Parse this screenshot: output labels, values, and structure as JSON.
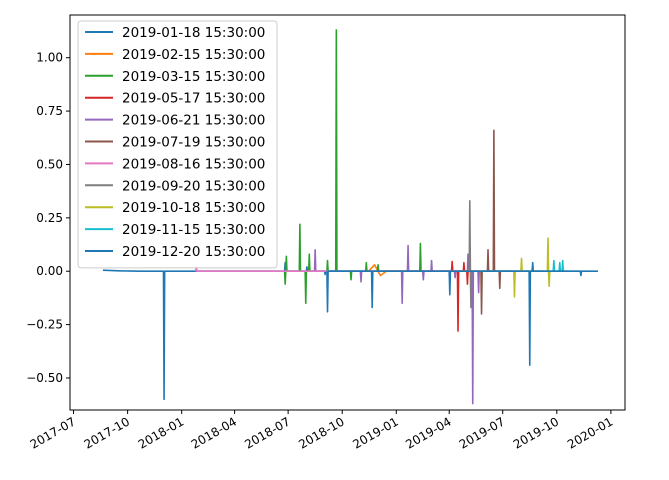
{
  "chart_data": {
    "type": "line",
    "title": "",
    "xlabel": "",
    "ylabel": "",
    "x_axis": "date",
    "xlim": [
      "2017-06-25",
      "2020-01-25"
    ],
    "ylim": [
      -0.65,
      1.2
    ],
    "x_ticks": [
      "2017-07",
      "2017-10",
      "2018-01",
      "2018-04",
      "2018-07",
      "2018-10",
      "2019-01",
      "2019-04",
      "2019-07",
      "2019-10",
      "2020-01"
    ],
    "y_ticks": [
      -0.5,
      -0.25,
      0.0,
      0.25,
      0.5,
      0.75,
      1.0
    ],
    "y_tick_labels": [
      "−0.50",
      "−0.25",
      "0.00",
      "0.25",
      "0.50",
      "0.75",
      "1.00"
    ],
    "grid": false,
    "legend_position": "top-left",
    "series": [
      {
        "name": "2019-01-18 15:30:00",
        "color": "#1f77b4",
        "points": [
          [
            "2017-08-20",
            0.005
          ],
          [
            "2017-09-15",
            0.002
          ],
          [
            "2017-10-20",
            0.0
          ],
          [
            "2017-11-20",
            0.0
          ],
          [
            "2017-12-01",
            0.0
          ],
          [
            "2017-12-02",
            -0.6
          ],
          [
            "2017-12-03",
            0.0
          ],
          [
            "2018-02-01",
            0.0
          ],
          [
            "2018-04-01",
            0.0
          ],
          [
            "2018-06-01",
            0.0
          ],
          [
            "2018-06-25",
            0.0
          ],
          [
            "2018-06-26",
            0.04
          ],
          [
            "2018-06-27",
            0.0
          ],
          [
            "2018-07-20",
            0.0
          ],
          [
            "2018-08-01",
            0.0
          ],
          [
            "2018-08-02",
            0.02
          ],
          [
            "2018-08-03",
            0.0
          ],
          [
            "2018-09-01",
            0.0
          ],
          [
            "2018-09-02",
            -0.015
          ],
          [
            "2018-09-03",
            0.0
          ],
          [
            "2018-10-01",
            0.0
          ],
          [
            "2018-11-01",
            0.0
          ],
          [
            "2018-12-01",
            0.0
          ],
          [
            "2018-12-20",
            0.0
          ]
        ]
      },
      {
        "name": "2019-02-15 15:30:00",
        "color": "#ff7f0e",
        "points": [
          [
            "2018-11-15",
            0.0
          ],
          [
            "2018-11-25",
            0.03
          ],
          [
            "2018-12-05",
            -0.02
          ],
          [
            "2018-12-15",
            0.0
          ],
          [
            "2019-01-05",
            0.0
          ],
          [
            "2019-01-25",
            0.0
          ]
        ]
      },
      {
        "name": "2019-03-15 15:30:00",
        "color": "#2ca02c",
        "points": [
          [
            "2018-06-25",
            0.0
          ],
          [
            "2018-06-26",
            -0.06
          ],
          [
            "2018-06-27",
            0.0
          ],
          [
            "2018-06-28",
            0.07
          ],
          [
            "2018-06-29",
            0.0
          ],
          [
            "2018-07-20",
            0.0
          ],
          [
            "2018-07-21",
            0.22
          ],
          [
            "2018-07-22",
            0.0
          ],
          [
            "2018-07-30",
            0.0
          ],
          [
            "2018-07-31",
            -0.15
          ],
          [
            "2018-08-01",
            0.0
          ],
          [
            "2018-08-05",
            0.0
          ],
          [
            "2018-08-06",
            0.08
          ],
          [
            "2018-08-07",
            0.0
          ],
          [
            "2018-09-05",
            0.0
          ],
          [
            "2018-09-06",
            0.05
          ],
          [
            "2018-09-07",
            0.0
          ],
          [
            "2018-09-20",
            0.0
          ],
          [
            "2018-09-21",
            1.13
          ],
          [
            "2018-09-22",
            0.0
          ],
          [
            "2018-10-15",
            0.0
          ],
          [
            "2018-10-16",
            -0.04
          ],
          [
            "2018-10-17",
            0.0
          ],
          [
            "2018-11-10",
            0.0
          ],
          [
            "2018-11-11",
            0.04
          ],
          [
            "2018-11-12",
            0.0
          ],
          [
            "2018-11-30",
            0.0
          ],
          [
            "2018-12-01",
            0.03
          ],
          [
            "2018-12-02",
            0.0
          ],
          [
            "2019-01-20",
            0.0
          ],
          [
            "2019-02-10",
            0.0
          ],
          [
            "2019-02-11",
            0.13
          ],
          [
            "2019-02-12",
            0.0
          ],
          [
            "2019-03-10",
            0.0
          ]
        ]
      },
      {
        "name": "2019-05-17 15:30:00",
        "color": "#d62728",
        "points": [
          [
            "2018-12-20",
            0.0
          ],
          [
            "2019-01-15",
            0.0
          ],
          [
            "2019-03-01",
            0.0
          ],
          [
            "2019-04-05",
            0.0
          ],
          [
            "2019-04-06",
            0.045
          ],
          [
            "2019-04-07",
            0.0
          ],
          [
            "2019-04-15",
            0.0
          ],
          [
            "2019-04-16",
            -0.28
          ],
          [
            "2019-04-17",
            0.0
          ],
          [
            "2019-04-25",
            0.0
          ],
          [
            "2019-04-26",
            0.04
          ],
          [
            "2019-04-27",
            0.0
          ],
          [
            "2019-05-01",
            0.0
          ],
          [
            "2019-05-02",
            -0.06
          ],
          [
            "2019-05-03",
            0.0
          ],
          [
            "2019-05-12",
            0.0
          ]
        ]
      },
      {
        "name": "2019-06-21 15:30:00",
        "color": "#9467bd",
        "points": [
          [
            "2018-01-25",
            0.0
          ],
          [
            "2018-01-26",
            0.02
          ],
          [
            "2018-01-27",
            0.0
          ],
          [
            "2018-05-25",
            0.0
          ],
          [
            "2018-06-15",
            0.0
          ],
          [
            "2018-08-15",
            0.0
          ],
          [
            "2018-08-16",
            0.1
          ],
          [
            "2018-08-17",
            0.0
          ],
          [
            "2018-11-01",
            0.0
          ],
          [
            "2018-11-02",
            -0.05
          ],
          [
            "2018-11-03",
            0.0
          ],
          [
            "2018-12-10",
            0.0
          ],
          [
            "2019-01-10",
            0.0
          ],
          [
            "2019-01-11",
            -0.15
          ],
          [
            "2019-01-12",
            0.0
          ],
          [
            "2019-01-20",
            0.0
          ],
          [
            "2019-01-21",
            0.12
          ],
          [
            "2019-01-22",
            0.0
          ],
          [
            "2019-02-15",
            0.0
          ],
          [
            "2019-02-16",
            -0.04
          ],
          [
            "2019-02-17",
            0.0
          ],
          [
            "2019-03-01",
            0.0
          ],
          [
            "2019-03-02",
            0.05
          ],
          [
            "2019-03-03",
            0.0
          ],
          [
            "2019-04-10",
            0.0
          ],
          [
            "2019-04-11",
            -0.03
          ],
          [
            "2019-04-12",
            0.0
          ],
          [
            "2019-05-02",
            0.0
          ],
          [
            "2019-05-03",
            0.08
          ],
          [
            "2019-05-04",
            0.0
          ],
          [
            "2019-05-10",
            0.0
          ],
          [
            "2019-05-11",
            -0.62
          ],
          [
            "2019-05-12",
            0.0
          ],
          [
            "2019-05-20",
            0.0
          ],
          [
            "2019-05-21",
            -0.1
          ],
          [
            "2019-05-22",
            0.0
          ]
        ]
      },
      {
        "name": "2019-07-19 15:30:00",
        "color": "#8c564b",
        "points": [
          [
            "2019-03-20",
            0.0
          ],
          [
            "2019-04-20",
            0.0
          ],
          [
            "2019-05-25",
            0.0
          ],
          [
            "2019-05-26",
            -0.2
          ],
          [
            "2019-05-27",
            0.0
          ],
          [
            "2019-06-05",
            0.0
          ],
          [
            "2019-06-06",
            0.1
          ],
          [
            "2019-06-07",
            0.0
          ],
          [
            "2019-06-15",
            0.0
          ],
          [
            "2019-06-16",
            0.66
          ],
          [
            "2019-06-17",
            0.0
          ],
          [
            "2019-06-25",
            0.0
          ],
          [
            "2019-06-26",
            -0.08
          ],
          [
            "2019-06-27",
            0.0
          ],
          [
            "2019-07-12",
            0.0
          ]
        ]
      },
      {
        "name": "2019-08-16 15:30:00",
        "color": "#e377c2",
        "points": [
          [
            "2018-01-25",
            0.0
          ],
          [
            "2018-01-26",
            0.02
          ],
          [
            "2018-01-27",
            0.0
          ],
          [
            "2018-06-01",
            0.0
          ],
          [
            "2018-11-10",
            0.0
          ],
          [
            "2019-01-15",
            0.0
          ],
          [
            "2019-02-20",
            0.0
          ],
          [
            "2019-04-15",
            0.0
          ],
          [
            "2019-06-01",
            0.0
          ],
          [
            "2019-07-10",
            0.0
          ],
          [
            "2019-08-10",
            0.0
          ]
        ]
      },
      {
        "name": "2019-09-20 15:30:00",
        "color": "#7f7f7f",
        "points": [
          [
            "2019-01-15",
            0.0
          ],
          [
            "2019-03-01",
            0.0
          ],
          [
            "2019-04-20",
            0.0
          ],
          [
            "2019-05-05",
            0.0
          ],
          [
            "2019-05-06",
            0.33
          ],
          [
            "2019-05-07",
            0.0
          ],
          [
            "2019-05-08",
            -0.17
          ],
          [
            "2019-05-09",
            0.0
          ],
          [
            "2019-06-01",
            0.0
          ],
          [
            "2019-07-10",
            0.0
          ],
          [
            "2019-08-10",
            0.0
          ],
          [
            "2019-09-10",
            0.0
          ]
        ]
      },
      {
        "name": "2019-10-18 15:30:00",
        "color": "#bcbd22",
        "points": [
          [
            "2019-04-20",
            0.0
          ],
          [
            "2019-06-15",
            0.0
          ],
          [
            "2019-07-20",
            0.0
          ],
          [
            "2019-07-21",
            -0.12
          ],
          [
            "2019-07-22",
            0.0
          ],
          [
            "2019-08-01",
            0.0
          ],
          [
            "2019-08-02",
            0.06
          ],
          [
            "2019-08-03",
            0.0
          ],
          [
            "2019-09-15",
            0.0
          ],
          [
            "2019-09-16",
            0.155
          ],
          [
            "2019-09-17",
            0.0
          ],
          [
            "2019-09-18",
            -0.07
          ],
          [
            "2019-09-19",
            0.0
          ],
          [
            "2019-10-12",
            0.0
          ]
        ]
      },
      {
        "name": "2019-11-15 15:30:00",
        "color": "#17becf",
        "points": [
          [
            "2019-06-01",
            0.0
          ],
          [
            "2019-08-01",
            0.0
          ],
          [
            "2019-09-25",
            0.0
          ],
          [
            "2019-09-26",
            0.05
          ],
          [
            "2019-09-27",
            0.0
          ],
          [
            "2019-10-05",
            0.0
          ],
          [
            "2019-10-06",
            0.04
          ],
          [
            "2019-10-07",
            0.0
          ],
          [
            "2019-10-10",
            0.0
          ],
          [
            "2019-10-11",
            0.05
          ],
          [
            "2019-10-12",
            0.0
          ],
          [
            "2019-11-10",
            0.0
          ]
        ]
      },
      {
        "name": "2019-12-20 15:30:00",
        "color": "#1f77b4",
        "points": [
          [
            "2018-09-05",
            0.0
          ],
          [
            "2018-09-06",
            -0.19
          ],
          [
            "2018-09-07",
            0.0
          ],
          [
            "2018-11-20",
            0.0
          ],
          [
            "2018-11-21",
            -0.17
          ],
          [
            "2018-11-22",
            0.0
          ],
          [
            "2019-04-01",
            0.0
          ],
          [
            "2019-04-02",
            -0.11
          ],
          [
            "2019-04-03",
            0.0
          ],
          [
            "2019-05-05",
            0.0
          ],
          [
            "2019-08-15",
            0.0
          ],
          [
            "2019-08-16",
            -0.44
          ],
          [
            "2019-08-17",
            0.0
          ],
          [
            "2019-08-20",
            0.0
          ],
          [
            "2019-08-21",
            0.04
          ],
          [
            "2019-08-22",
            0.0
          ],
          [
            "2019-09-20",
            0.0
          ],
          [
            "2019-10-20",
            0.0
          ],
          [
            "2019-11-10",
            0.0
          ],
          [
            "2019-11-11",
            -0.02
          ],
          [
            "2019-11-12",
            0.0
          ],
          [
            "2019-12-10",
            0.0
          ]
        ]
      }
    ]
  }
}
